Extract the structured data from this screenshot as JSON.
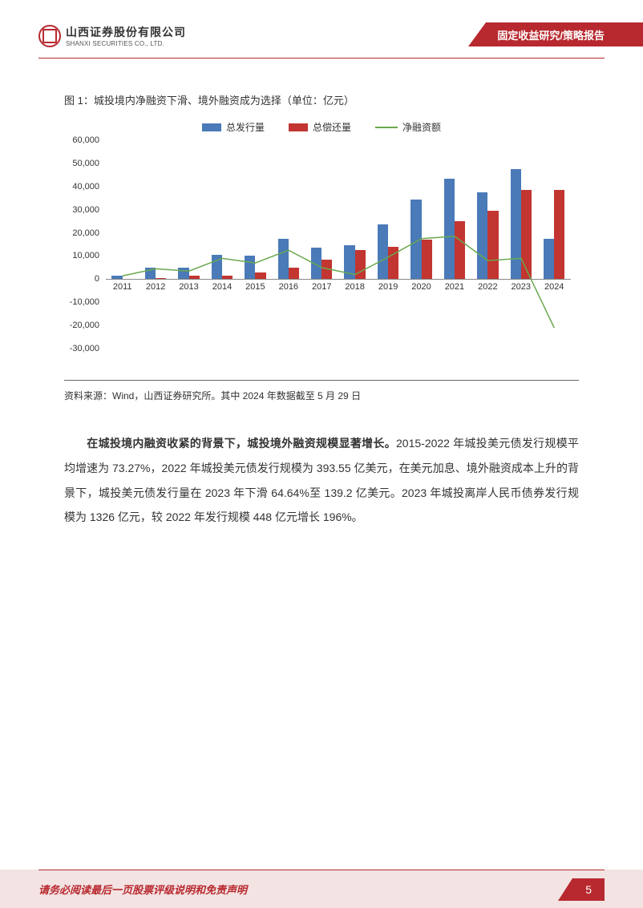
{
  "header": {
    "company_cn": "山西证券股份有限公司",
    "company_en": "SHANXI SECURITIES CO., LTD.",
    "report_type": "固定收益研究/策略报告"
  },
  "figure": {
    "caption": "图 1：城投境内净融资下滑、境外融资成为选择（单位：亿元）",
    "source": "资料来源：Wind，山西证券研究所。其中 2024 年数据截至 5 月 29 日",
    "legend": {
      "series1": "总发行量",
      "series2": "总偿还量",
      "series3": "净融资额"
    },
    "chart": {
      "type": "bar+line",
      "years": [
        "2011",
        "2012",
        "2013",
        "2014",
        "2015",
        "2016",
        "2017",
        "2018",
        "2019",
        "2020",
        "2021",
        "2022",
        "2023",
        "2024"
      ],
      "series1_values": [
        1500,
        5000,
        5000,
        10500,
        10000,
        17500,
        13500,
        14500,
        23500,
        34500,
        43500,
        37500,
        47500,
        17500
      ],
      "series2_values": [
        100,
        500,
        1500,
        1500,
        3000,
        5000,
        8500,
        12500,
        14000,
        17000,
        25000,
        29500,
        38500,
        38500
      ],
      "series3_values": [
        1400,
        4500,
        3500,
        9000,
        7000,
        12500,
        5000,
        2000,
        9500,
        17500,
        18500,
        8000,
        9000,
        -21000
      ],
      "colors": {
        "series1": "#4a7ab8",
        "series2": "#c23531",
        "series3": "#6aa84f",
        "grid": "#888888",
        "text": "#333333",
        "background": "#ffffff"
      },
      "ylim": [
        -30000,
        60000
      ],
      "ytick_step": 10000,
      "yticks": [
        -30000,
        -20000,
        -10000,
        0,
        10000,
        20000,
        30000,
        40000,
        50000,
        60000
      ],
      "bar_width_ratio": 0.32,
      "line_width": 1.5,
      "label_fontsize": 11
    }
  },
  "body": {
    "bold_lead": "在城投境内融资收紧的背景下，城投境外融资规模显著增长。",
    "rest": "2015-2022 年城投美元债发行规模平均增速为 73.27%，2022 年城投美元债发行规模为 393.55 亿美元，在美元加息、境外融资成本上升的背景下，城投美元债发行量在 2023 年下滑 64.64%至 139.2 亿美元。2023 年城投离岸人民币债券发行规模为 1326 亿元，较 2022 年发行规模 448 亿元增长 196%。"
  },
  "footer": {
    "disclaimer": "请务必阅读最后一页股票评级说明和免责声明",
    "page": "5"
  }
}
